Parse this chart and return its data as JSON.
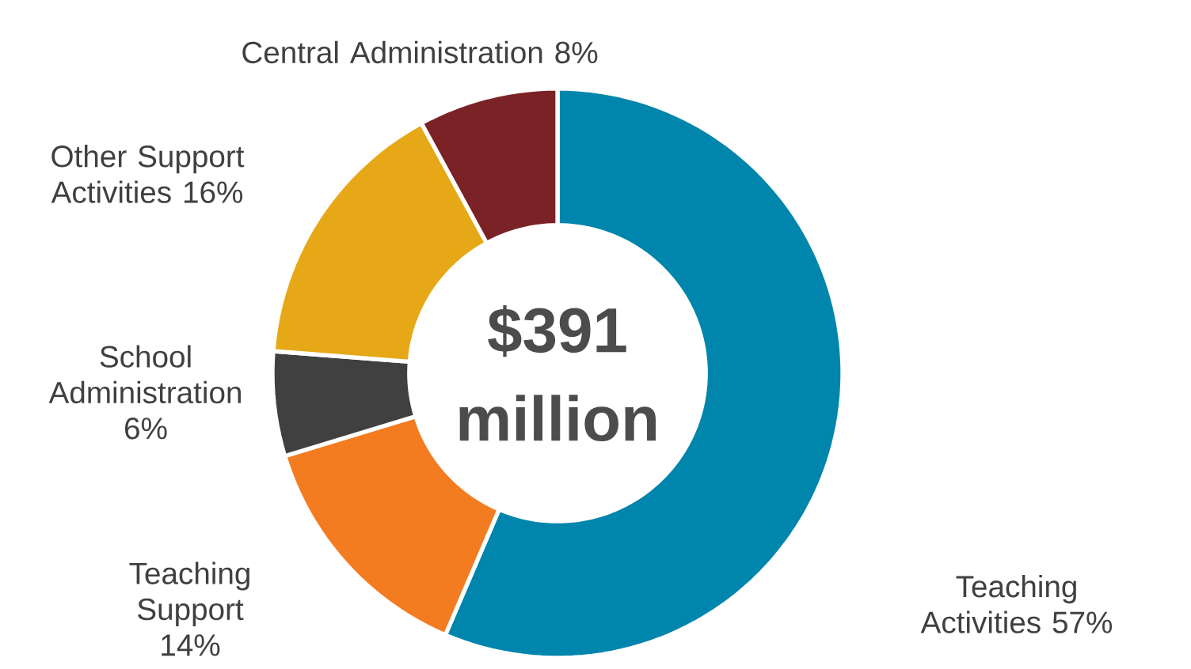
{
  "chart_data": {
    "type": "donut",
    "title": "$391 million",
    "categories": [
      "Teaching Activities",
      "Teaching Support",
      "School Administration",
      "Other Support Activities",
      "Central Administration"
    ],
    "values": [
      57,
      14,
      6,
      16,
      8
    ],
    "value_labels": [
      "57%",
      "14%",
      "6%",
      "16%",
      "8%"
    ],
    "colors": [
      "#0085ad",
      "#f47c20",
      "#404040",
      "#e6a817",
      "#7b2226"
    ]
  }
}
